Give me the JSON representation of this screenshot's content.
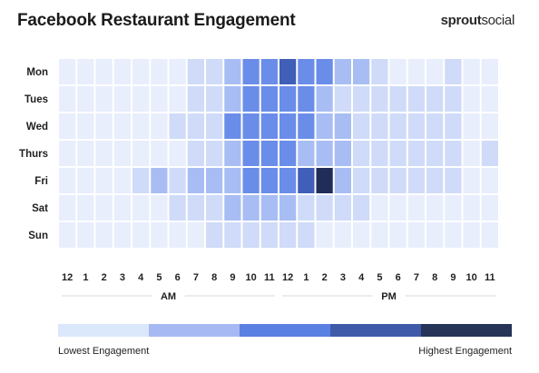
{
  "title": "Facebook Restaurant Engagement",
  "brand": {
    "bold": "sprout",
    "light": "social"
  },
  "chart_data": {
    "type": "heatmap",
    "title": "Facebook Restaurant Engagement",
    "rows": [
      "Mon",
      "Tues",
      "Wed",
      "Thurs",
      "Fri",
      "Sat",
      "Sun"
    ],
    "columns": [
      "12",
      "1",
      "2",
      "3",
      "4",
      "5",
      "6",
      "7",
      "8",
      "9",
      "10",
      "11",
      "12",
      "1",
      "2",
      "3",
      "4",
      "5",
      "6",
      "7",
      "8",
      "9",
      "10",
      "11"
    ],
    "period_labels": [
      "AM",
      "PM"
    ],
    "levels": [
      [
        0,
        0,
        0,
        0,
        0,
        0,
        0,
        1,
        1,
        2,
        3,
        3,
        4,
        3,
        3,
        2,
        2,
        1,
        0,
        0,
        0,
        1,
        0,
        0
      ],
      [
        0,
        0,
        0,
        0,
        0,
        0,
        0,
        1,
        1,
        2,
        3,
        3,
        3,
        3,
        2,
        1,
        1,
        1,
        1,
        1,
        1,
        1,
        0,
        0
      ],
      [
        0,
        0,
        0,
        0,
        0,
        0,
        1,
        1,
        1,
        3,
        3,
        3,
        3,
        3,
        2,
        2,
        1,
        1,
        1,
        1,
        1,
        1,
        0,
        0
      ],
      [
        0,
        0,
        0,
        0,
        0,
        0,
        0,
        1,
        1,
        2,
        3,
        3,
        3,
        2,
        2,
        2,
        1,
        1,
        1,
        1,
        1,
        1,
        0,
        1
      ],
      [
        0,
        0,
        0,
        0,
        1,
        2,
        1,
        2,
        2,
        2,
        3,
        3,
        3,
        4,
        5,
        2,
        1,
        1,
        1,
        1,
        1,
        1,
        0,
        0
      ],
      [
        0,
        0,
        0,
        0,
        0,
        0,
        1,
        1,
        1,
        2,
        2,
        2,
        2,
        1,
        1,
        1,
        1,
        0,
        0,
        0,
        0,
        0,
        0,
        0
      ],
      [
        0,
        0,
        0,
        0,
        0,
        0,
        0,
        0,
        1,
        1,
        1,
        1,
        1,
        1,
        0,
        0,
        0,
        0,
        0,
        0,
        0,
        0,
        0,
        0
      ]
    ],
    "level_colors": [
      "#e8eefc",
      "#cfdbf8",
      "#a8bdf3",
      "#6a8de9",
      "#3f5fb8",
      "#1f2d58"
    ],
    "legend": {
      "colors": [
        "#dbe7fb",
        "#a7b9f2",
        "#5b80e4",
        "#3f5aa8",
        "#263457"
      ],
      "low_label": "Lowest Engagement",
      "high_label": "Highest Engagement"
    }
  }
}
